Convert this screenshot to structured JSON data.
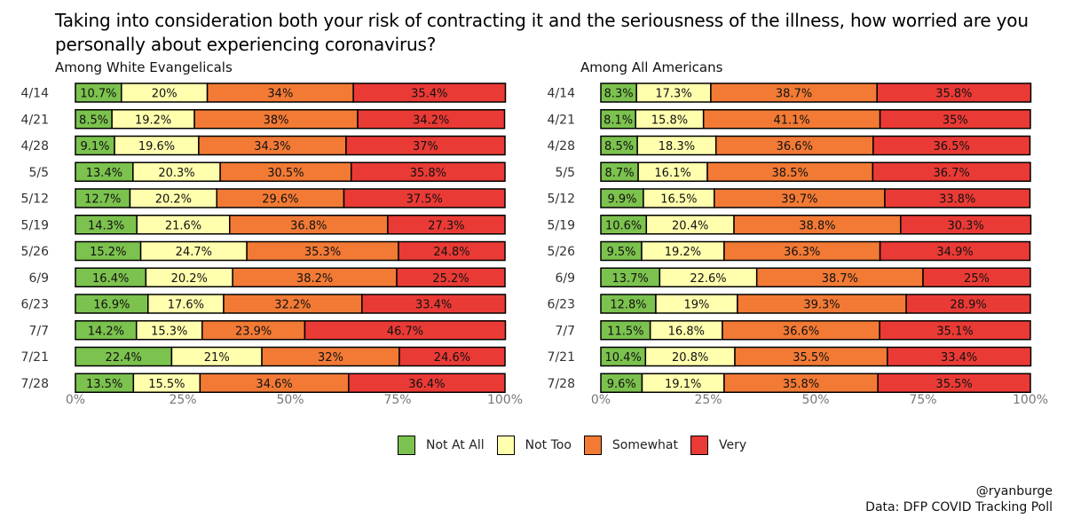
{
  "title": "Taking into consideration both your risk of contracting it and the seriousness of the illness, how worried are you personally about experiencing coronavirus?",
  "legend": [
    {
      "label": "Not At All",
      "color": "#7CC24E"
    },
    {
      "label": "Not Too",
      "color": "#FFFFAE"
    },
    {
      "label": "Somewhat",
      "color": "#F27A35"
    },
    {
      "label": "Very",
      "color": "#EA3A35"
    }
  ],
  "credits": {
    "handle": "@ryanburge",
    "source": "Data: DFP COVID Tracking Poll"
  },
  "chart_data": [
    {
      "type": "bar",
      "orientation": "horizontal",
      "stacked": true,
      "subtitle": "Among White Evangelicals",
      "categories": [
        "4/14",
        "4/21",
        "4/28",
        "5/5",
        "5/12",
        "5/19",
        "5/26",
        "6/9",
        "6/23",
        "7/7",
        "7/21",
        "7/28"
      ],
      "series": [
        {
          "name": "Not At All",
          "values": [
            10.7,
            8.5,
            9.1,
            13.4,
            12.7,
            14.3,
            15.2,
            16.4,
            16.9,
            14.2,
            22.4,
            13.5
          ]
        },
        {
          "name": "Not Too",
          "values": [
            20,
            19.2,
            19.6,
            20.3,
            20.2,
            21.6,
            24.7,
            20.2,
            17.6,
            15.3,
            21,
            15.5
          ]
        },
        {
          "name": "Somewhat",
          "values": [
            34,
            38,
            34.3,
            30.5,
            29.6,
            36.8,
            35.3,
            38.2,
            32.2,
            23.9,
            32,
            34.6
          ]
        },
        {
          "name": "Very",
          "values": [
            35.4,
            34.2,
            37,
            35.8,
            37.5,
            27.3,
            24.8,
            25.2,
            33.4,
            46.7,
            24.6,
            36.4
          ]
        }
      ],
      "xlim": [
        0,
        100
      ],
      "ticks": [
        "0%",
        "25%",
        "50%",
        "75%",
        "100%"
      ],
      "legend_position": "bottom"
    },
    {
      "type": "bar",
      "orientation": "horizontal",
      "stacked": true,
      "subtitle": "Among All Americans",
      "categories": [
        "4/14",
        "4/21",
        "4/28",
        "5/5",
        "5/12",
        "5/19",
        "5/26",
        "6/9",
        "6/23",
        "7/7",
        "7/21",
        "7/28"
      ],
      "series": [
        {
          "name": "Not At All",
          "values": [
            8.3,
            8.1,
            8.5,
            8.7,
            9.9,
            10.6,
            9.5,
            13.7,
            12.8,
            11.5,
            10.4,
            9.6
          ]
        },
        {
          "name": "Not Too",
          "values": [
            17.3,
            15.8,
            18.3,
            16.1,
            16.5,
            20.4,
            19.2,
            22.6,
            19,
            16.8,
            20.8,
            19.1
          ]
        },
        {
          "name": "Somewhat",
          "values": [
            38.7,
            41.1,
            36.6,
            38.5,
            39.7,
            38.8,
            36.3,
            38.7,
            39.3,
            36.6,
            35.5,
            35.8
          ]
        },
        {
          "name": "Very",
          "values": [
            35.8,
            35,
            36.5,
            36.7,
            33.8,
            30.3,
            34.9,
            25,
            28.9,
            35.1,
            33.4,
            35.5
          ]
        }
      ],
      "xlim": [
        0,
        100
      ],
      "ticks": [
        "0%",
        "25%",
        "50%",
        "75%",
        "100%"
      ],
      "legend_position": "bottom"
    }
  ]
}
